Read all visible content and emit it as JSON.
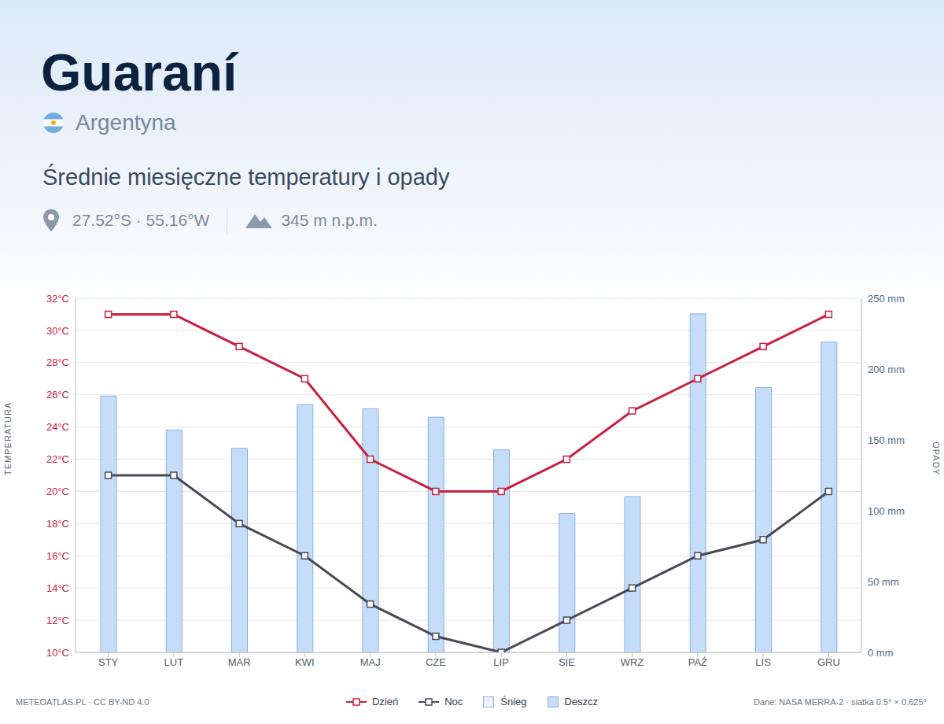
{
  "chart_data": {
    "type": "bar",
    "title": "Guaraní",
    "subtitle": "Argentyna",
    "heading": "Średnie miesięczne temperatury i opady",
    "location": "27.52°S · 55.16°W",
    "elevation": "345 m n.p.m.",
    "source": "METEOATLAS.PL · CC BY-ND 4.0",
    "note": "Dane: NASA MERRA-2 · siatka 0.5° × 0.625°",
    "y_label": "TEMPERATURA",
    "y2_label": "OPADY",
    "categories": [
      "STY",
      "LUT",
      "MAR",
      "KWI",
      "MAJ",
      "CZE",
      "LIP",
      "SIE",
      "WRZ",
      "PAŹ",
      "LIS",
      "GRU"
    ],
    "series": [
      {
        "name": "Dzień",
        "type": "line",
        "color": "#c8203f",
        "marker": "square",
        "values": [
          31,
          31,
          29,
          27,
          22,
          20,
          20,
          22,
          25,
          27,
          29,
          31
        ]
      },
      {
        "name": "Noc",
        "type": "line",
        "color": "#4a4a55",
        "marker": "square",
        "values": [
          21,
          21,
          18,
          16,
          13,
          11,
          10,
          12,
          14,
          16,
          17,
          20
        ]
      },
      {
        "name": "Śnieg",
        "type": "bar",
        "color": "#eef5ff",
        "axis": "y2",
        "values": [
          0,
          0,
          0,
          0,
          0,
          0,
          0,
          0,
          0,
          0,
          0,
          0
        ]
      },
      {
        "name": "Deszcz",
        "type": "bar",
        "color": "#c6ddfa",
        "axis": "y2",
        "values": [
          181,
          157,
          144,
          175,
          172,
          166,
          143,
          98,
          110,
          239,
          187,
          219
        ]
      }
    ],
    "ylim": [
      10,
      32
    ],
    "yticks": [
      {
        "value": 10,
        "label": "10°C"
      },
      {
        "value": 12,
        "label": "12°C"
      },
      {
        "value": 14,
        "label": "14°C"
      },
      {
        "value": 16,
        "label": "16°C"
      },
      {
        "value": 18,
        "label": "18°C"
      },
      {
        "value": 20,
        "label": "20°C"
      },
      {
        "value": 22,
        "label": "22°C"
      },
      {
        "value": 24,
        "label": "24°C"
      },
      {
        "value": 26,
        "label": "26°C"
      },
      {
        "value": 28,
        "label": "28°C"
      },
      {
        "value": 30,
        "label": "30°C"
      },
      {
        "value": 32,
        "label": "32°C"
      }
    ],
    "y2lim": [
      0,
      250
    ],
    "y2ticks": [
      {
        "value": 0,
        "label": "0 mm"
      },
      {
        "value": 50,
        "label": "50 mm"
      },
      {
        "value": 100,
        "label": "100 mm"
      },
      {
        "value": 150,
        "label": "150 mm"
      },
      {
        "value": 200,
        "label": "200 mm"
      },
      {
        "value": 250,
        "label": "250 mm"
      }
    ],
    "grid": true,
    "legend": "bottom",
    "stacked": true
  }
}
